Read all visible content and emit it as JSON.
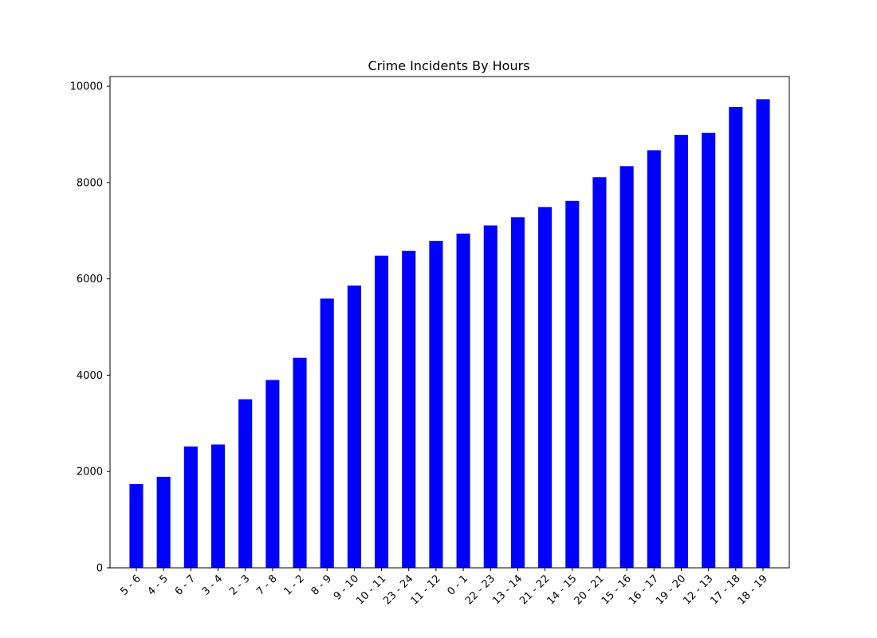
{
  "chart_data": {
    "type": "bar",
    "title": "Crime Incidents By Hours",
    "xlabel": "",
    "ylabel": "",
    "categories": [
      "5 - 6",
      "4 - 5",
      "6 - 7",
      "3 - 4",
      "2 - 3",
      "7 - 8",
      "1 - 2",
      "8 - 9",
      "9 - 10",
      "10 - 11",
      "23 - 24",
      "11 - 12",
      "0 - 1",
      "22 - 23",
      "13 - 14",
      "21 - 22",
      "14 - 15",
      "20 - 21",
      "15 - 16",
      "16 - 17",
      "19 - 20",
      "12 - 13",
      "17 - 18",
      "18 - 19"
    ],
    "values": [
      1740,
      1890,
      2520,
      2560,
      3500,
      3900,
      4360,
      5590,
      5860,
      6480,
      6580,
      6790,
      6940,
      7110,
      7280,
      7490,
      7620,
      8110,
      8340,
      8670,
      8990,
      9030,
      9570,
      9730
    ],
    "yticks": [
      0,
      2000,
      4000,
      6000,
      8000,
      10000
    ],
    "ylim": [
      0,
      10200
    ],
    "bar_color": "#0000ff",
    "grid": false,
    "legend": "none"
  }
}
